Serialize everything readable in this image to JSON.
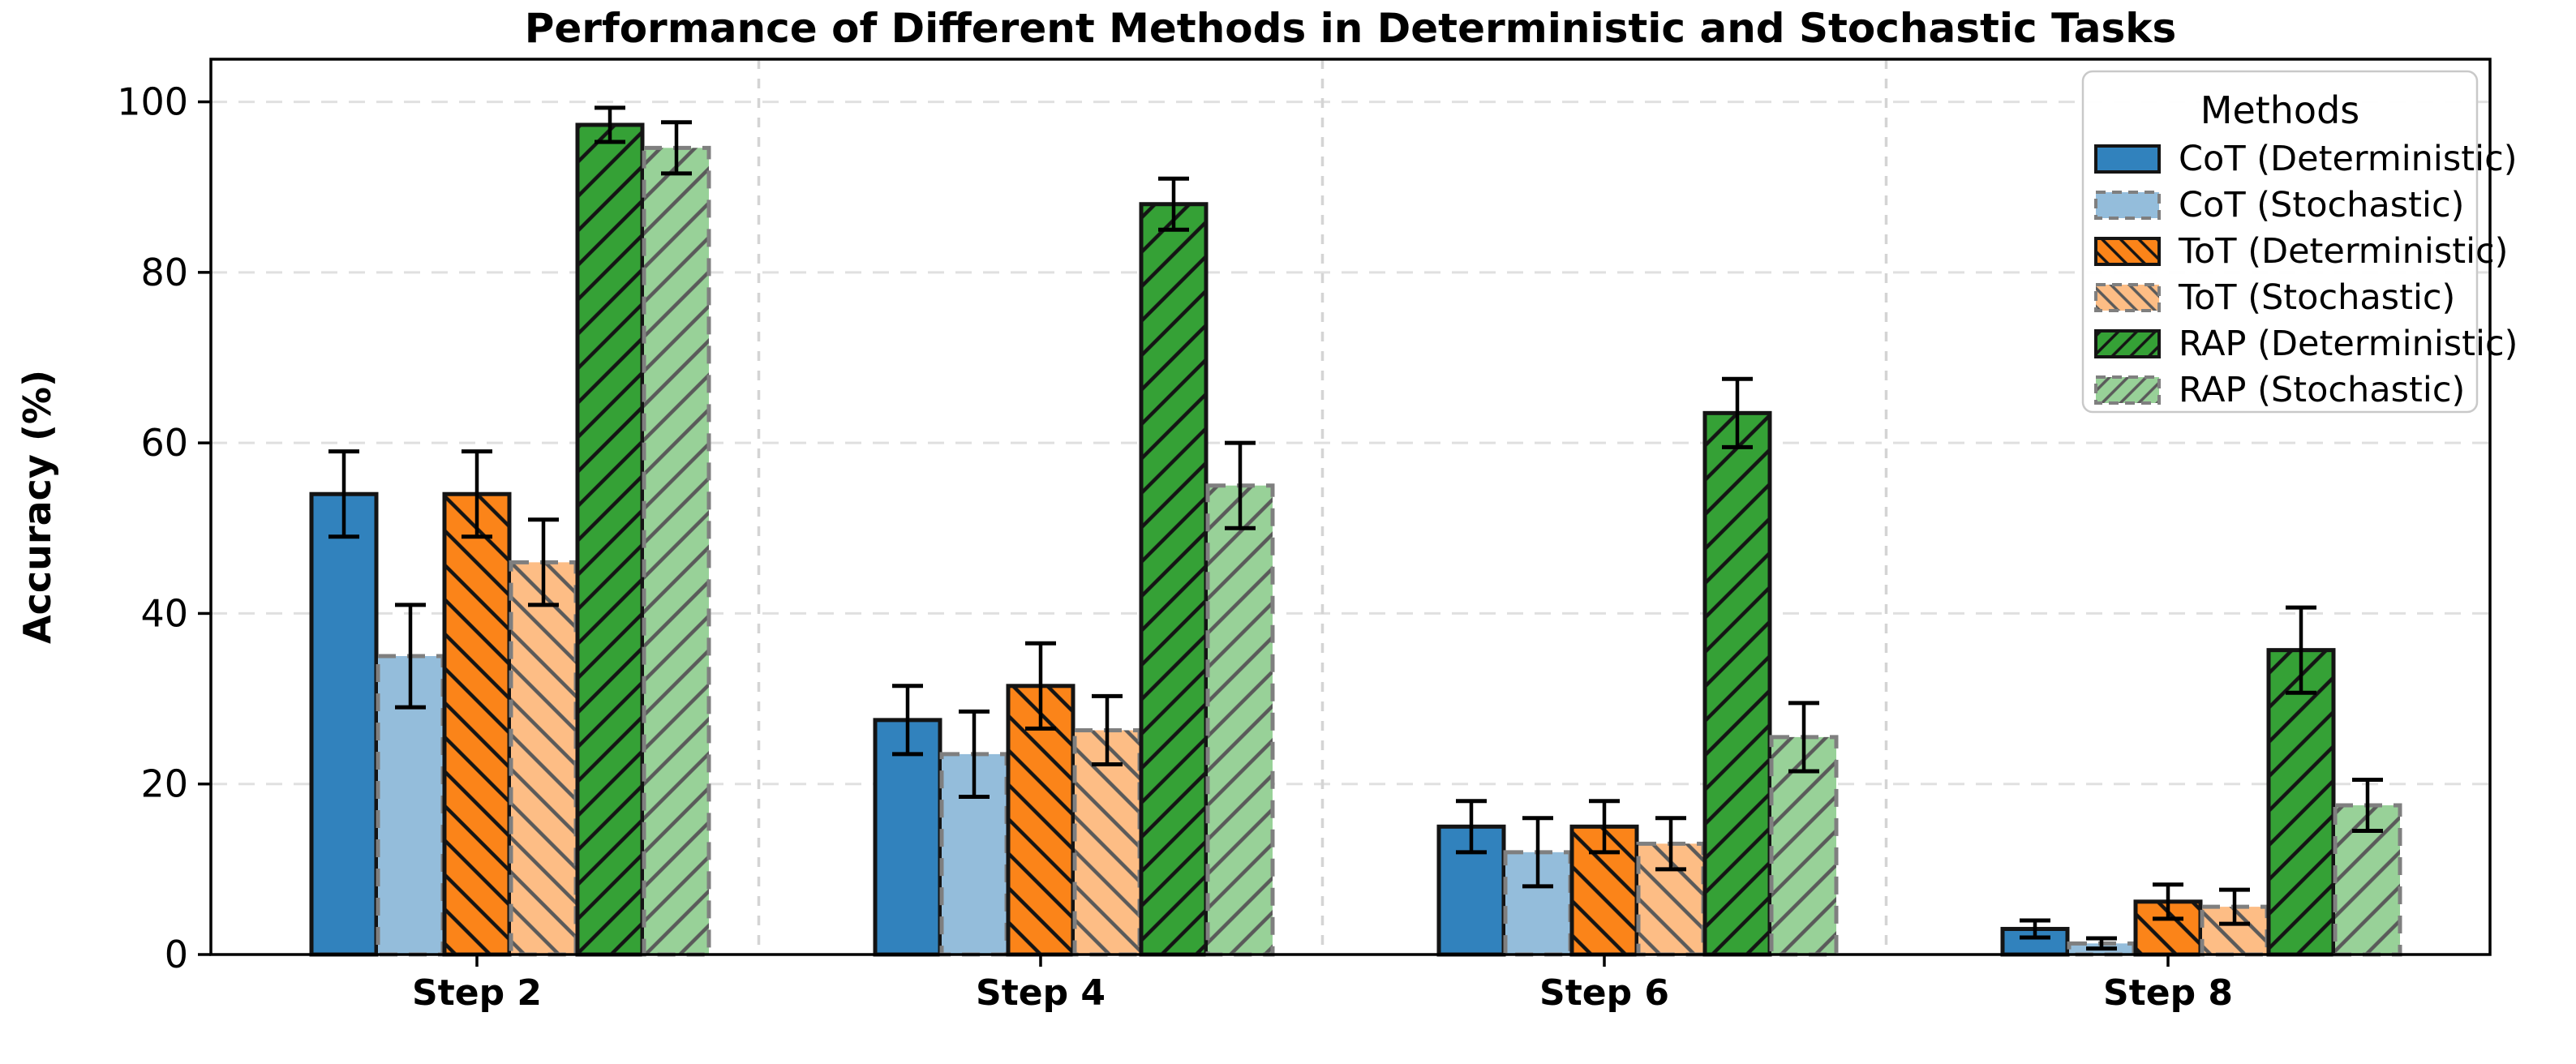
{
  "figure": {
    "background": "#ffffff"
  },
  "chart_data": {
    "type": "bar",
    "title": "Performance of Different Methods in Deterministic and Stochastic Tasks",
    "xlabel": "",
    "ylabel": "Accuracy (%)",
    "categories": [
      "Step 2",
      "Step 4",
      "Step 6",
      "Step 8"
    ],
    "yticks": [
      0,
      20,
      40,
      60,
      80,
      100
    ],
    "ylim": [
      0,
      105
    ],
    "grid": "horizontal dashed gridlines at each ytick plus dashed vertical separators between category groups",
    "legend": {
      "title": "Methods",
      "position": "upper right"
    },
    "series": [
      {
        "name": "CoT (Deterministic)",
        "style": "deterministic",
        "color": "#3182bd",
        "hatch": "none",
        "values": [
          54.0,
          27.5,
          15.0,
          3.0
        ],
        "errors": [
          5.0,
          4.0,
          3.0,
          1.0
        ]
      },
      {
        "name": "CoT (Stochastic)",
        "style": "stochastic",
        "color": "#94bddb",
        "hatch": "none",
        "values": [
          35.0,
          23.5,
          12.0,
          1.3
        ],
        "errors": [
          6.0,
          5.0,
          4.0,
          0.6
        ]
      },
      {
        "name": "ToT (Deterministic)",
        "style": "deterministic",
        "color": "#fb8419",
        "hatch": "\\",
        "values": [
          54.0,
          31.5,
          15.0,
          6.2
        ],
        "errors": [
          5.0,
          5.0,
          3.0,
          2.0
        ]
      },
      {
        "name": "ToT (Stochastic)",
        "style": "stochastic",
        "color": "#fdbd85",
        "hatch": "\\",
        "values": [
          46.0,
          26.3,
          13.0,
          5.6
        ],
        "errors": [
          5.0,
          4.0,
          3.0,
          2.0
        ]
      },
      {
        "name": "RAP (Deterministic)",
        "style": "deterministic",
        "color": "#35a136",
        "hatch": "/",
        "values": [
          97.3,
          88.0,
          63.5,
          35.7
        ],
        "errors": [
          2.0,
          3.0,
          4.0,
          5.0
        ]
      },
      {
        "name": "RAP (Stochastic)",
        "style": "stochastic",
        "color": "#98d198",
        "hatch": "/",
        "values": [
          94.6,
          55.0,
          25.5,
          17.5
        ],
        "errors": [
          3.0,
          5.0,
          4.0,
          3.0
        ]
      }
    ],
    "edge_colors": {
      "deterministic": "#141414",
      "stochastic": "#7f7f7f"
    },
    "hatch_colors": {
      "deterministic": "#141414",
      "stochastic": "#5a5a5a"
    },
    "errorbar_color": "#000000",
    "gridline_color": "#e0e0e0",
    "separator_color": "#d4d4d4",
    "spine_color": "#000000"
  }
}
